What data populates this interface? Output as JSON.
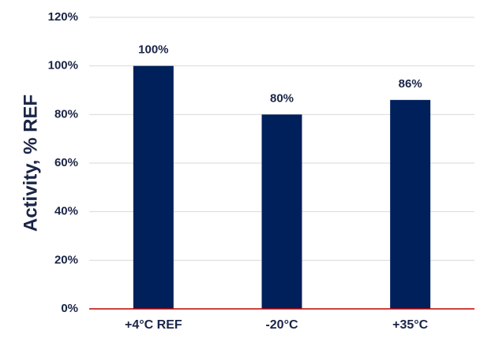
{
  "chart_data": {
    "type": "bar",
    "title": "",
    "xlabel": "",
    "ylabel": "Activity, % REF",
    "categories": [
      "+4°C REF",
      "-20°C",
      "+35°C"
    ],
    "values": [
      100,
      80,
      86
    ],
    "data_labels": [
      "100%",
      "80%",
      "86%"
    ],
    "ylim": [
      0,
      120
    ],
    "yticks": [
      0,
      20,
      40,
      60,
      80,
      100,
      120
    ],
    "ytick_labels": [
      "0%",
      "20%",
      "40%",
      "60%",
      "80%",
      "100%",
      "120%"
    ],
    "grid": true,
    "legend": "none"
  },
  "colors": {
    "bar": "#00205b",
    "grid": "#d9d9d9",
    "baseline": "#c00000",
    "text": "#1a2447"
  }
}
